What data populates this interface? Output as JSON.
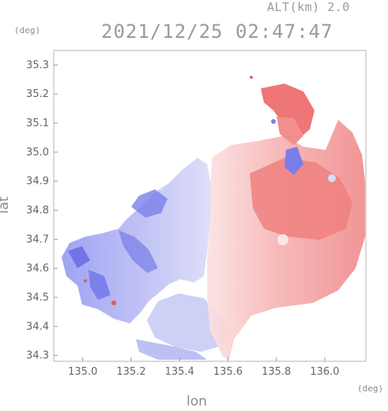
{
  "header": {
    "altitude": "ALT(km) 2.0",
    "timestamp": "2021/12/25 02:47:47"
  },
  "axes": {
    "y_unit": "(deg)",
    "x_unit": "(deg)",
    "xlabel": "lon",
    "ylabel": "lat"
  },
  "chart_data": {
    "type": "heatmap",
    "xlabel": "lon",
    "ylabel": "lat",
    "xlim": [
      134.88,
      136.17
    ],
    "ylim": [
      34.28,
      35.35
    ],
    "x_ticks": [
      "135.0",
      "135.2",
      "135.4",
      "135.6",
      "135.8",
      "136.0"
    ],
    "y_ticks": [
      "35.3",
      "35.2",
      "35.1",
      "35.0",
      "34.9",
      "34.8",
      "34.7",
      "34.6",
      "34.5",
      "34.4",
      "34.3"
    ],
    "colors": {
      "approaching": "#8a8ef0",
      "receding": "#f08080",
      "weak_approaching": "#cfd0f5",
      "weak_receding": "#f7c8c8"
    }
  }
}
